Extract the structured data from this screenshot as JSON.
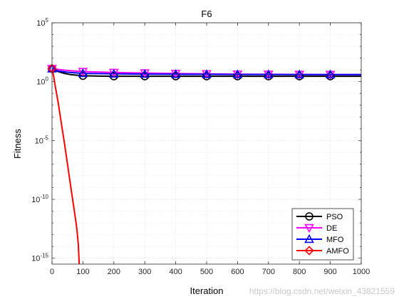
{
  "chart_data": {
    "type": "line",
    "title": "F6",
    "xlabel": "Iteration",
    "ylabel": "Fitness",
    "xlim": [
      0,
      1000
    ],
    "ylim_exponent": [
      -15.5,
      5
    ],
    "y_scale": "log",
    "x_ticks": [
      "0",
      "100",
      "200",
      "300",
      "400",
      "500",
      "600",
      "700",
      "800",
      "900",
      "1000"
    ],
    "y_ticks": [
      {
        "base": "10",
        "exp": "5",
        "value_exp": 5
      },
      {
        "base": "10",
        "exp": "0",
        "value_exp": 0
      },
      {
        "base": "10",
        "exp": "-5",
        "value_exp": -5
      },
      {
        "base": "10",
        "exp": "-10",
        "value_exp": -10
      },
      {
        "base": "10",
        "exp": "-15",
        "value_exp": -15
      }
    ],
    "grid": true,
    "legend_position": "bottom-right",
    "series": [
      {
        "name": "PSO",
        "color": "#000000",
        "marker": "circle",
        "x": [
          0,
          20,
          40,
          60,
          80,
          100,
          150,
          200,
          300,
          400,
          500,
          600,
          700,
          800,
          900,
          1000
        ],
        "log10_y": [
          1.1,
          0.85,
          0.7,
          0.6,
          0.55,
          0.5,
          0.47,
          0.46,
          0.46,
          0.46,
          0.46,
          0.46,
          0.46,
          0.46,
          0.46,
          0.46
        ],
        "marker_x": [
          0,
          100,
          200,
          300,
          400,
          500,
          600,
          700,
          800,
          900
        ]
      },
      {
        "name": "DE",
        "color": "#ff00ff",
        "marker": "triangle-down",
        "x": [
          0,
          50,
          100,
          200,
          300,
          400,
          500,
          600,
          700,
          800,
          900,
          1000
        ],
        "log10_y": [
          1.1,
          0.95,
          0.85,
          0.78,
          0.73,
          0.69,
          0.66,
          0.63,
          0.62,
          0.61,
          0.6,
          0.6
        ],
        "marker_x": [
          0,
          100,
          200,
          300,
          400,
          500,
          600,
          700,
          800,
          900
        ]
      },
      {
        "name": "MFO",
        "color": "#0000ff",
        "marker": "triangle-up",
        "x": [
          0,
          20,
          50,
          100,
          200,
          300,
          400,
          500,
          600,
          700,
          800,
          900,
          1000
        ],
        "log10_y": [
          1.1,
          0.9,
          0.8,
          0.7,
          0.66,
          0.64,
          0.63,
          0.62,
          0.61,
          0.61,
          0.6,
          0.6,
          0.6
        ],
        "marker_x": [
          0,
          100,
          200,
          300,
          400,
          500,
          600,
          700,
          800,
          900
        ]
      },
      {
        "name": "AMFO",
        "color": "#ff0000",
        "marker": "diamond",
        "x": [
          0,
          5,
          10,
          20,
          30,
          40,
          50,
          60,
          70,
          80,
          85,
          88
        ],
        "log10_y": [
          1.1,
          0.5,
          -0.3,
          -1.8,
          -3.5,
          -5.2,
          -7.0,
          -8.8,
          -10.6,
          -12.4,
          -13.8,
          -15.5
        ],
        "marker_x": [
          0
        ]
      }
    ]
  },
  "watermark": "https://blog.csdn.net/weixin_43821559"
}
